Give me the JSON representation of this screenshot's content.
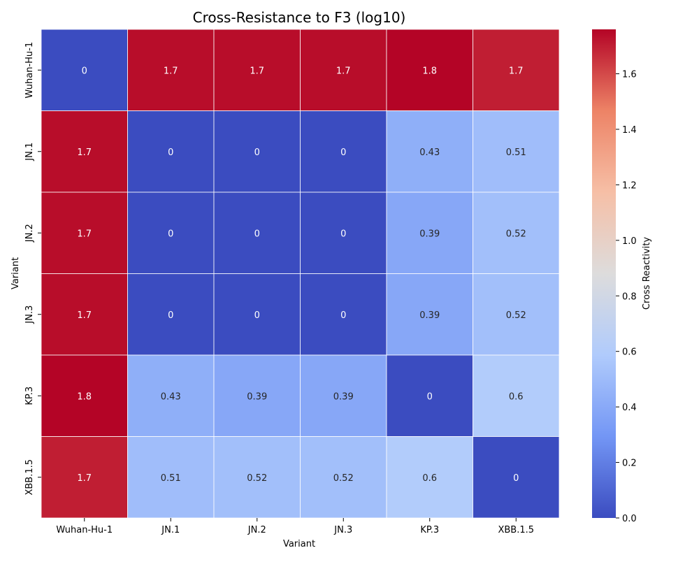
{
  "chart_data": {
    "type": "heatmap",
    "title": "Cross-Resistance to F3 (log10)",
    "xlabel": "Variant",
    "ylabel": "Variant",
    "x_categories": [
      "Wuhan-Hu-1",
      "JN.1",
      "JN.2",
      "JN.3",
      "KP.3",
      "XBB.1.5"
    ],
    "y_categories": [
      "Wuhan-Hu-1",
      "JN.1",
      "JN.2",
      "JN.3",
      "KP.3",
      "XBB.1.5"
    ],
    "values": [
      [
        0,
        1.7,
        1.7,
        1.7,
        1.8,
        1.7
      ],
      [
        1.7,
        0,
        0,
        0,
        0.43,
        0.51
      ],
      [
        1.7,
        0,
        0,
        0,
        0.39,
        0.52
      ],
      [
        1.7,
        0,
        0,
        0,
        0.39,
        0.52
      ],
      [
        1.8,
        0.43,
        0.39,
        0.39,
        0,
        0.6
      ],
      [
        1.7,
        0.51,
        0.52,
        0.52,
        0.6,
        0
      ]
    ],
    "exact_values": [
      [
        0,
        1.74,
        1.74,
        1.74,
        1.76,
        1.7
      ],
      [
        1.74,
        0,
        0,
        0,
        0.43,
        0.51
      ],
      [
        1.74,
        0,
        0,
        0,
        0.39,
        0.52
      ],
      [
        1.74,
        0,
        0,
        0,
        0.39,
        0.52
      ],
      [
        1.76,
        0.43,
        0.39,
        0.39,
        0,
        0.6
      ],
      [
        1.7,
        0.51,
        0.52,
        0.52,
        0.6,
        0
      ]
    ],
    "colormap": "coolwarm",
    "colormap_stops": [
      "#3b4cc0",
      "#7396f5",
      "#b0cbfc",
      "#dddcdc",
      "#f6bfa6",
      "#ed8366",
      "#b40426"
    ],
    "value_range": [
      0,
      1.76
    ],
    "colorbar": {
      "label": "Cross Reactivity",
      "ticks": [
        "0.0",
        "0.2",
        "0.4",
        "0.6",
        "0.8",
        "1.0",
        "1.2",
        "1.4",
        "1.6"
      ],
      "tick_values": [
        0,
        0.2,
        0.4,
        0.6,
        0.8,
        1.0,
        1.2,
        1.4,
        1.6
      ]
    },
    "grid": false,
    "legend": "colorbar-right"
  }
}
